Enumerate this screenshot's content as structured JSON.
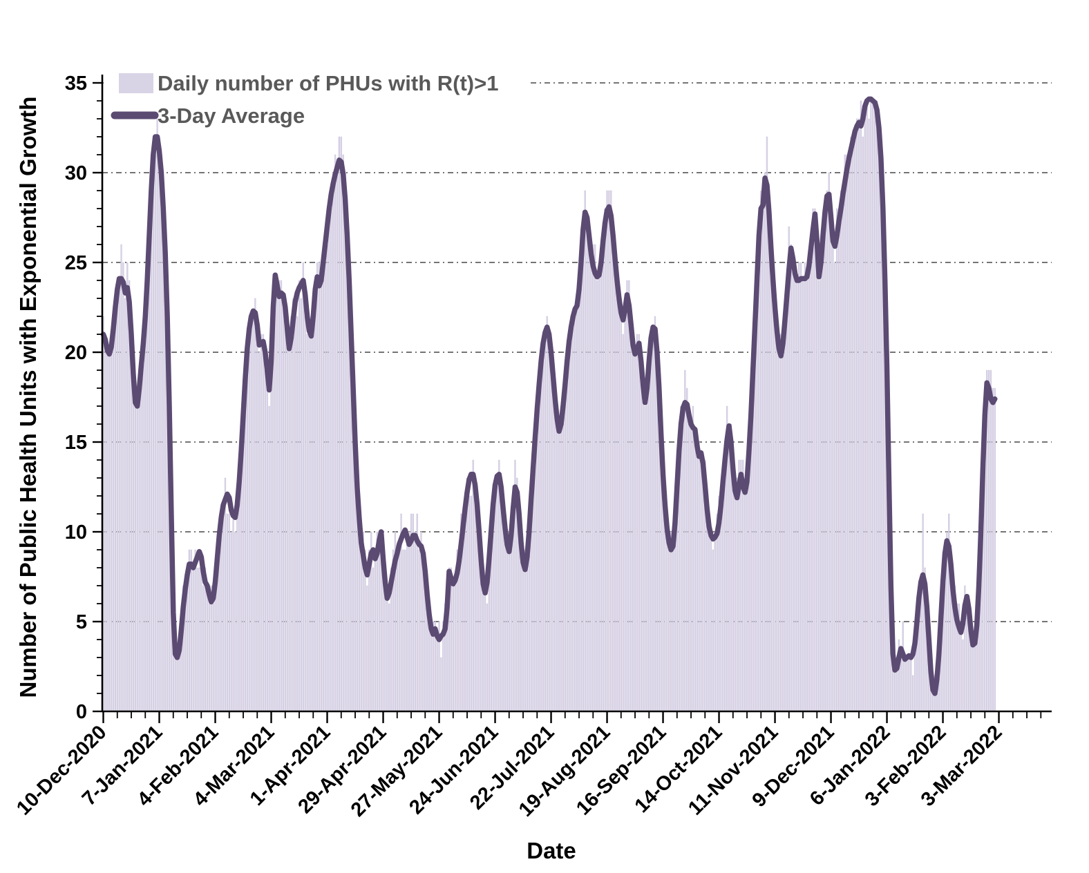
{
  "chart_data": {
    "type": "combo-bar-line",
    "title": "",
    "xlabel": "Date",
    "ylabel": "Number of Public Health Units with Exponential Growth",
    "ylim": [
      0,
      35
    ],
    "y_ticks": [
      0,
      5,
      10,
      15,
      20,
      25,
      30,
      35
    ],
    "grid": "horizontal dash-dot",
    "legend_position": "top-left",
    "x_start_date": "10-Dec-2020",
    "x_unit": "day",
    "x_major_tick_interval_days": 28,
    "x_minor_tick_interval_days": 7,
    "x_major_tick_labels": [
      "10-Dec-2020",
      "7-Jan-2021",
      "4-Feb-2021",
      "4-Mar-2021",
      "1-Apr-2021",
      "29-Apr-2021",
      "27-May-2021",
      "24-Jun-2021",
      "22-Jul-2021",
      "19-Aug-2021",
      "16-Sep-2021",
      "14-Oct-2021",
      "11-Nov-2021",
      "9-Dec-2021",
      "6-Jan-2022",
      "3-Feb-2022",
      "3-Mar-2022"
    ],
    "series": [
      {
        "name": "Daily number of PHUs with R(t)>1",
        "type": "bar",
        "color": "#d9d3e6",
        "edge_color": "#c9c2da",
        "note": "daily integer bars estimated as 3-day average plus small jitter",
        "jitter_amplitude": 2.2,
        "jitter_offset": 0.42,
        "bar_spikes": {
          "9": 26,
          "27": 33,
          "119": 32,
          "157": 11,
          "198": 14,
          "241": 29,
          "252": 29,
          "276": 22,
          "291": 19,
          "312": 17,
          "332": 32,
          "343": 27,
          "362": 29,
          "377": 33,
          "400": 5,
          "410": 11,
          "423": 11,
          "431": 7,
          "442": 19
        }
      },
      {
        "name": "3-Day Average",
        "type": "line",
        "color": "#5b4a72",
        "width": 7.5,
        "values": [
          21.0,
          20.7,
          20.1,
          19.9,
          20.3,
          21.3,
          22.5,
          23.5,
          24.1,
          24.1,
          23.9,
          23.3,
          23.6,
          22.8,
          21.0,
          18.8,
          17.2,
          17.0,
          18.0,
          19.3,
          20.5,
          22.0,
          24.0,
          26.5,
          29.0,
          31.0,
          32.0,
          32.0,
          31.2,
          30.0,
          28.0,
          25.5,
          22.0,
          17.0,
          11.0,
          5.5,
          3.2,
          3.0,
          3.4,
          4.5,
          5.8,
          6.8,
          7.6,
          8.2,
          8.2,
          8.0,
          8.3,
          8.6,
          8.9,
          8.6,
          7.8,
          7.2,
          7.0,
          6.5,
          6.1,
          6.3,
          7.2,
          8.5,
          9.8,
          10.8,
          11.5,
          11.8,
          12.1,
          11.9,
          11.2,
          10.9,
          10.8,
          11.5,
          12.8,
          14.5,
          16.5,
          18.5,
          20.2,
          21.3,
          22.0,
          22.3,
          22.2,
          21.5,
          20.4,
          20.5,
          20.6,
          20.0,
          19.0,
          17.9,
          19.5,
          22.5,
          24.3,
          23.7,
          23.1,
          23.3,
          23.2,
          22.5,
          21.3,
          20.2,
          20.8,
          21.8,
          22.8,
          23.3,
          23.6,
          23.8,
          24.0,
          23.2,
          22.0,
          21.2,
          20.9,
          22.0,
          23.5,
          24.2,
          23.7,
          24.0,
          25.0,
          26.0,
          27.0,
          28.0,
          28.8,
          29.4,
          29.9,
          30.3,
          30.7,
          30.6,
          29.9,
          28.5,
          26.5,
          24.0,
          21.0,
          18.0,
          15.0,
          12.5,
          10.8,
          9.4,
          8.7,
          8.0,
          7.6,
          8.2,
          8.8,
          9.0,
          8.5,
          8.8,
          9.5,
          10.0,
          8.5,
          7.2,
          6.3,
          6.6,
          7.2,
          7.8,
          8.4,
          8.8,
          9.3,
          9.6,
          9.9,
          10.1,
          9.7,
          9.3,
          9.5,
          9.8,
          9.8,
          9.5,
          9.3,
          9.2,
          8.8,
          7.8,
          6.5,
          5.4,
          4.6,
          4.3,
          4.6,
          4.2,
          4.0,
          4.2,
          4.3,
          4.6,
          5.8,
          7.8,
          7.4,
          7.1,
          7.3,
          7.7,
          8.4,
          9.3,
          10.3,
          11.3,
          12.2,
          12.9,
          13.2,
          13.2,
          12.6,
          11.5,
          10.0,
          8.4,
          7.1,
          6.6,
          7.2,
          8.5,
          10.0,
          11.5,
          12.6,
          13.1,
          13.2,
          12.5,
          11.3,
          10.2,
          9.3,
          8.9,
          9.8,
          11.3,
          12.5,
          12.2,
          11.0,
          9.4,
          8.3,
          7.9,
          8.6,
          10.0,
          11.8,
          13.5,
          15.2,
          16.8,
          18.2,
          19.5,
          20.5,
          21.1,
          21.4,
          21.0,
          20.0,
          18.7,
          17.4,
          16.3,
          15.6,
          16.0,
          17.0,
          18.2,
          19.5,
          20.6,
          21.4,
          22.0,
          22.4,
          22.6,
          23.5,
          25.0,
          26.8,
          27.8,
          27.5,
          26.5,
          25.5,
          24.8,
          24.4,
          24.2,
          24.3,
          25.0,
          26.2,
          27.2,
          27.9,
          28.1,
          27.6,
          26.5,
          25.2,
          24.0,
          23.0,
          22.2,
          21.8,
          22.4,
          23.2,
          22.6,
          21.5,
          20.4,
          19.9,
          20.2,
          20.5,
          19.5,
          18.2,
          17.2,
          18.0,
          19.5,
          20.8,
          21.4,
          21.3,
          20.0,
          18.0,
          15.5,
          13.2,
          11.5,
          10.2,
          9.4,
          9.0,
          9.2,
          10.5,
          12.5,
          14.5,
          16.0,
          16.9,
          17.2,
          17.1,
          16.5,
          16.0,
          15.8,
          15.7,
          14.8,
          14.2,
          14.4,
          13.8,
          12.6,
          11.3,
          10.3,
          9.8,
          9.6,
          9.7,
          9.9,
          10.5,
          11.5,
          12.8,
          14.0,
          15.1,
          15.9,
          15.0,
          13.5,
          12.3,
          11.9,
          12.6,
          13.2,
          12.5,
          12.2,
          12.8,
          14.5,
          16.5,
          19.0,
          21.5,
          24.0,
          26.5,
          28.0,
          28.2,
          29.7,
          29.3,
          27.8,
          25.8,
          24.0,
          22.5,
          21.2,
          20.2,
          19.8,
          20.5,
          21.8,
          23.2,
          24.6,
          25.8,
          25.2,
          24.4,
          24.0,
          24.0,
          24.1,
          24.1,
          24.1,
          24.2,
          24.8,
          25.8,
          26.8,
          27.7,
          26.2,
          24.2,
          25.0,
          26.5,
          27.8,
          28.7,
          28.8,
          27.5,
          26.2,
          25.9,
          26.5,
          27.3,
          28.0,
          28.8,
          29.5,
          30.2,
          30.8,
          31.3,
          31.8,
          32.3,
          32.6,
          32.8,
          32.6,
          33.0,
          33.7,
          34.0,
          34.1,
          34.1,
          34.0,
          33.9,
          33.5,
          32.5,
          30.8,
          28.0,
          24.0,
          19.0,
          13.0,
          7.0,
          3.2,
          2.3,
          2.4,
          3.0,
          3.5,
          3.2,
          2.9,
          3.0,
          3.1,
          3.0,
          3.2,
          3.8,
          5.0,
          6.3,
          7.2,
          7.6,
          7.1,
          5.8,
          4.0,
          2.2,
          1.2,
          1.0,
          1.8,
          3.2,
          5.2,
          7.2,
          8.8,
          9.5,
          9.2,
          8.2,
          6.8,
          5.8,
          5.1,
          4.7,
          4.4,
          4.9,
          5.9,
          6.4,
          5.7,
          4.5,
          3.7,
          3.8,
          4.8,
          7.0,
          10.0,
          13.5,
          16.5,
          18.3,
          18.0,
          17.4,
          17.2,
          17.4
        ]
      }
    ]
  },
  "legend": {
    "bar_label": "Daily number of PHUs with R(t)>1",
    "line_label": "3-Day Average"
  },
  "axes": {
    "x_title": "Date",
    "y_title": "Number of Public Health Units with Exponential Growth",
    "y_tick_labels": [
      "0",
      "5",
      "10",
      "15",
      "20",
      "25",
      "30",
      "35"
    ]
  },
  "colors": {
    "bar_fill": "#d9d3e6",
    "bar_edge": "#c9c2da",
    "line": "#5b4a72",
    "axis": "#000000",
    "grid": "#222222",
    "tick_label": "#000000",
    "legend_text": "#595959",
    "background": "#ffffff"
  }
}
